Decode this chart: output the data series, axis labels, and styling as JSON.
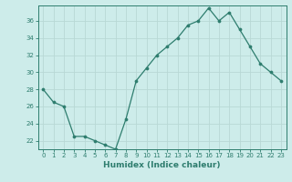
{
  "x": [
    0,
    1,
    2,
    3,
    4,
    5,
    6,
    7,
    8,
    9,
    10,
    11,
    12,
    13,
    14,
    15,
    16,
    17,
    18,
    19,
    20,
    21,
    22,
    23
  ],
  "y": [
    28,
    26.5,
    26,
    22.5,
    22.5,
    22,
    21.5,
    21,
    24.5,
    29,
    30.5,
    32,
    33,
    34,
    35.5,
    36,
    37.5,
    36,
    37,
    35,
    33,
    31,
    30,
    29
  ],
  "line_color": "#2e7d6e",
  "marker": "o",
  "marker_size": 2.2,
  "bg_color": "#cdecea",
  "grid_color": "#b8d8d5",
  "xlabel": "Humidex (Indice chaleur)",
  "xlim": [
    -0.5,
    23.5
  ],
  "ylim": [
    21.0,
    37.8
  ],
  "yticks": [
    22,
    24,
    26,
    28,
    30,
    32,
    34,
    36
  ],
  "xticks": [
    0,
    1,
    2,
    3,
    4,
    5,
    6,
    7,
    8,
    9,
    10,
    11,
    12,
    13,
    14,
    15,
    16,
    17,
    18,
    19,
    20,
    21,
    22,
    23
  ],
  "tick_color": "#2e7d6e",
  "font_color": "#2e7d6e",
  "axis_color": "#2e7d6e",
  "tick_fontsize": 5.0,
  "xlabel_fontsize": 6.5
}
